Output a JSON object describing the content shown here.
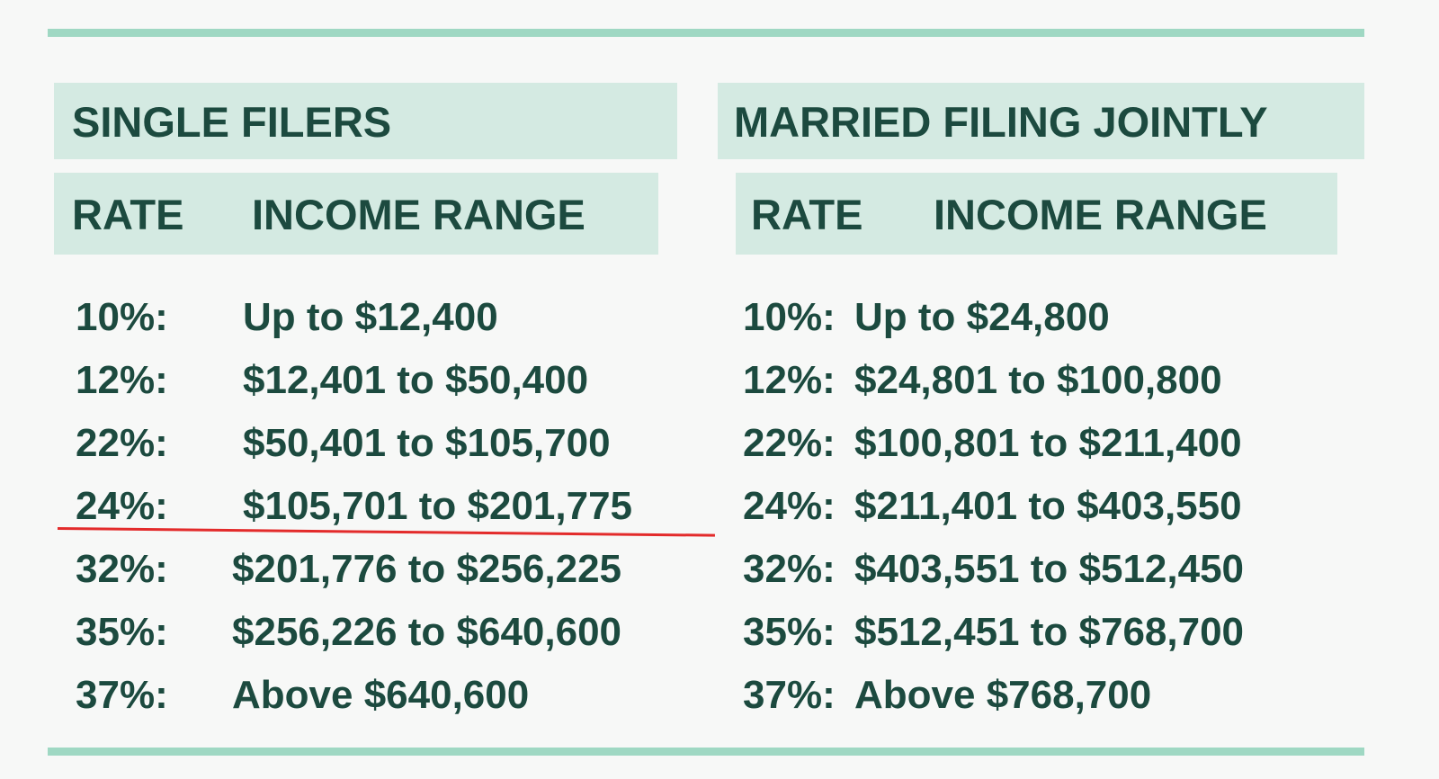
{
  "single": {
    "title": "SINGLE FILERS",
    "headers": [
      "RATE",
      "INCOME RANGE"
    ],
    "rows": [
      [
        "10%:",
        "Up to $12,400"
      ],
      [
        "12%:",
        "$12,401 to $50,400"
      ],
      [
        "22%:",
        "$50,401 to $105,700"
      ],
      [
        "24%:",
        "$105,701 to $201,775"
      ],
      [
        "32%:",
        "$201,776 to $256,225"
      ],
      [
        "35%:",
        "$256,226 to $640,600"
      ],
      [
        "37%:",
        "Above $640,600"
      ]
    ]
  },
  "married": {
    "title": "MARRIED FILING JOINTLY",
    "headers": [
      "RATE",
      "INCOME RANGE"
    ],
    "rows": [
      [
        "10%:",
        "Up to $24,800"
      ],
      [
        "12%:",
        "$24,801 to $100,800"
      ],
      [
        "22%:",
        "$100,801 to $211,400"
      ],
      [
        "24%:",
        "$211,401 to $403,550"
      ],
      [
        "32%:",
        "$403,551 to $512,450"
      ],
      [
        "35%:",
        "$512,451 to $768,700"
      ],
      [
        "37%:",
        "Above $768,700"
      ]
    ]
  }
}
